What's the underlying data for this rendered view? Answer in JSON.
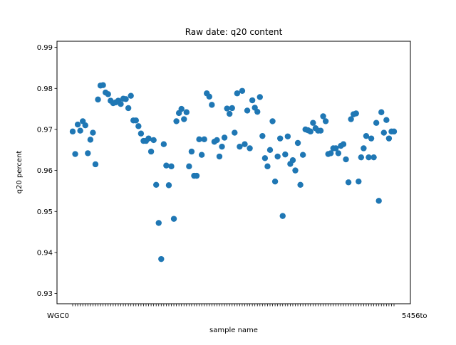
{
  "chart_data": {
    "type": "scatter",
    "title": "Raw date: q20 content",
    "xlabel": "sample name",
    "ylabel": "q20 percent",
    "ylim": [
      0.9275,
      0.9915
    ],
    "yticks": [
      0.93,
      0.94,
      0.95,
      0.96,
      0.97,
      0.98,
      0.99
    ],
    "ytick_labels": [
      "0.93",
      "0.94",
      "0.95",
      "0.96",
      "0.97",
      "0.98",
      "0.99"
    ],
    "xtick_labels_visible": {
      "left": "WGC0",
      "right": "5456to"
    },
    "grid": false,
    "marker_color": "#1f77b4",
    "series": [
      {
        "values": [
          0.9695,
          0.964,
          0.9712,
          0.9697,
          0.972,
          0.971,
          0.9642,
          0.9675,
          0.9692,
          0.9615,
          0.9773,
          0.9807,
          0.9808,
          0.979,
          0.9786,
          0.977,
          0.9764,
          0.9766,
          0.977,
          0.9762,
          0.9775,
          0.9774,
          0.9752,
          0.9782,
          0.9722,
          0.9722,
          0.9708,
          0.969,
          0.9672,
          0.9672,
          0.9678,
          0.9646,
          0.9674,
          0.9565,
          0.9472,
          0.9384,
          0.9664,
          0.9612,
          0.9564,
          0.961,
          0.9482,
          0.972,
          0.974,
          0.975,
          0.9725,
          0.9742,
          0.961,
          0.9646,
          0.9587,
          0.9587,
          0.9676,
          0.9638,
          0.9676,
          0.9788,
          0.978,
          0.976,
          0.967,
          0.9674,
          0.9634,
          0.9658,
          0.968,
          0.9751,
          0.9738,
          0.9752,
          0.9692,
          0.9788,
          0.9658,
          0.9794,
          0.9664,
          0.9746,
          0.9654,
          0.9771,
          0.9753,
          0.9743,
          0.9779,
          0.9684,
          0.963,
          0.961,
          0.965,
          0.972,
          0.9573,
          0.9634,
          0.9678,
          0.9489,
          0.9639,
          0.9683,
          0.9616,
          0.9625,
          0.96,
          0.9667,
          0.9565,
          0.9638,
          0.97,
          0.9698,
          0.9695,
          0.9716,
          0.9703,
          0.9697,
          0.9697,
          0.9732,
          0.972,
          0.964,
          0.9642,
          0.9654,
          0.9654,
          0.9642,
          0.966,
          0.9664,
          0.9627,
          0.9571,
          0.9725,
          0.9737,
          0.9739,
          0.9573,
          0.9632,
          0.9654,
          0.9684,
          0.9632,
          0.9678,
          0.9632,
          0.9716,
          0.9526,
          0.9742,
          0.9692,
          0.9723,
          0.9678,
          0.9695,
          0.9695
        ]
      }
    ]
  }
}
